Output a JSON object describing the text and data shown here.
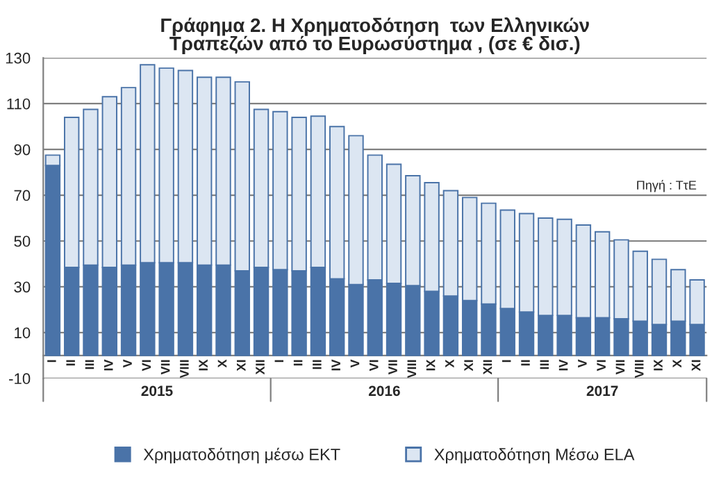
{
  "chart_data": {
    "type": "bar",
    "stacked": true,
    "title": "Γράφημα 2. Η Χρηματοδότηση  των Ελληνικών\nΤραπεζών από το Ευρωσύστημα , (σε € δισ.)",
    "categories": [
      "I",
      "II",
      "III",
      "IV",
      "V",
      "VI",
      "VII",
      "VIII",
      "IX",
      "X",
      "XI",
      "XII",
      "I",
      "II",
      "III",
      "IV",
      "V",
      "VI",
      "VII",
      "VIII",
      "IX",
      "X",
      "XI",
      "XII",
      "I",
      "II",
      "III",
      "IV",
      "V",
      "VI",
      "VII",
      "VIII",
      "IX",
      "X",
      "XI"
    ],
    "series": [
      {
        "name": "Χρηματοδότηση μέσω ΕΚΤ",
        "color": "#4a73a8",
        "values": [
          83,
          38.5,
          39.5,
          38.5,
          39.5,
          40.5,
          40.5,
          40.5,
          39.5,
          39.5,
          37,
          38.5,
          37.5,
          37,
          38.5,
          33.5,
          31,
          33,
          31.5,
          30.5,
          28,
          26,
          24,
          22.5,
          20.5,
          19,
          17.5,
          17.5,
          16.5,
          16.5,
          16,
          15,
          13.5,
          15,
          13.5
        ]
      },
      {
        "name": "Χρηματοδότηση Μέσω ELA",
        "color": "#dce6f2",
        "values": [
          4.5,
          65.5,
          68,
          74.5,
          77.5,
          86.5,
          85,
          84,
          82,
          82,
          82.5,
          69,
          69,
          67,
          66,
          66.5,
          65,
          54.5,
          52,
          48,
          47.5,
          46,
          45,
          44,
          43,
          43,
          42.5,
          42,
          40.5,
          37.5,
          34.5,
          30.5,
          28.5,
          22.5,
          19.5
        ]
      }
    ],
    "ylim": [
      -10,
      130
    ],
    "yticks": [
      -10,
      10,
      30,
      50,
      70,
      90,
      110,
      130
    ],
    "grid": "y",
    "legend": "bottom",
    "annotations": [
      "2015",
      "2016",
      "2017",
      "Πηγή : ΤτΕ"
    ]
  }
}
